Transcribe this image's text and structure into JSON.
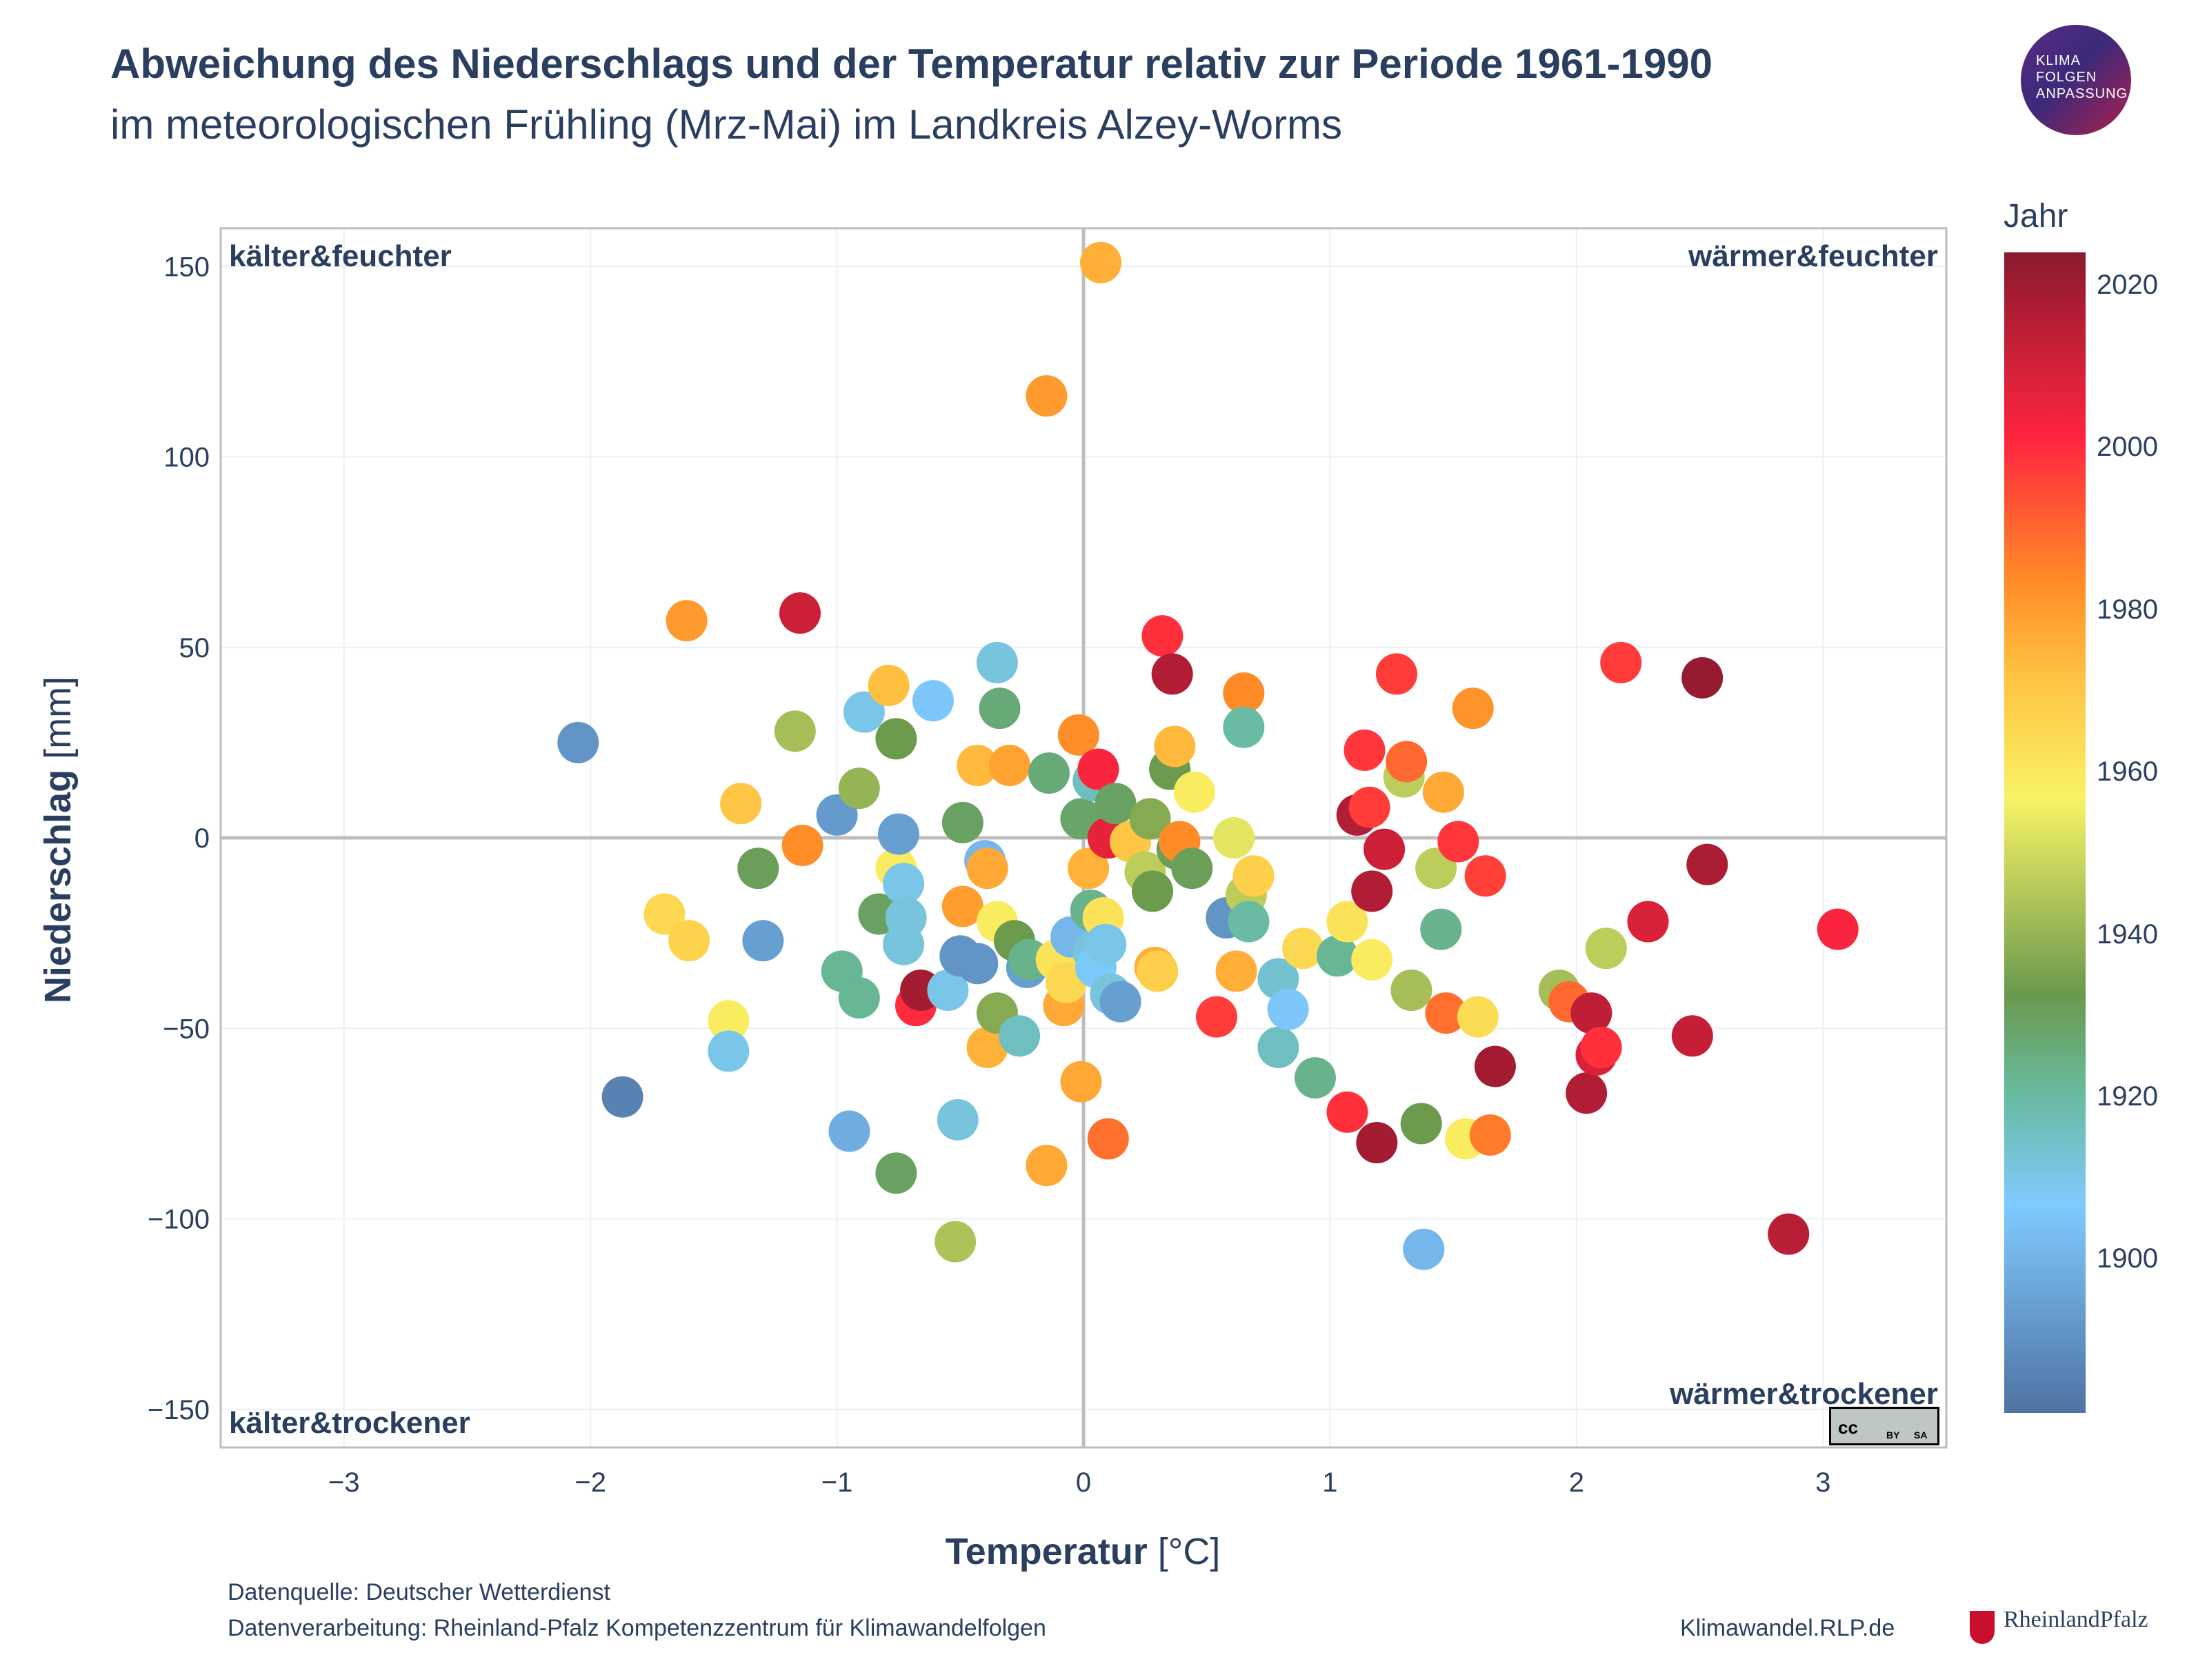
{
  "title": "Abweichung des Niederschlags und der Temperatur relativ zur Periode 1961-1990",
  "subtitle": "im meteorologischen Frühling (Mrz-Mai) im Landkreis Alzey-Worms",
  "logo_text": [
    "KLIMA",
    "FOLGEN",
    "ANPASSUNG"
  ],
  "colorbar": {
    "title": "Jahr",
    "ticks": [
      "2020",
      "2000",
      "1980",
      "1960",
      "1940",
      "1920",
      "1900"
    ],
    "tick_years": [
      2020,
      2000,
      1980,
      1960,
      1940,
      1920,
      1900
    ],
    "range": [
      1881,
      2024
    ],
    "colors": [
      "#4f73a2",
      "#7fcaff",
      "#67b99a",
      "#6a994e",
      "#f8f365",
      "#ffbf3f",
      "#ff8a27",
      "#ff243f",
      "#8a1a2e"
    ]
  },
  "footer": {
    "source": "Datenquelle: Deutscher Wetterdienst",
    "processing": "Datenverarbeitung: Rheinland-Pfalz Kompetenzzentrum für Klimawandelfolgen",
    "site": "Klimawandel.RLP.de",
    "state_logo": "RheinlandPfalz",
    "license": [
      "cc",
      "BY",
      "SA"
    ]
  },
  "chart_data": {
    "type": "scatter",
    "xlabel_bold": "Temperatur",
    "xlabel_unit": " [°C]",
    "ylabel_bold": "Niederschlag",
    "ylabel_unit": " [mm]",
    "xlim": [
      -3.5,
      3.5
    ],
    "ylim": [
      -160,
      160
    ],
    "x_ticks": [
      -3,
      -2,
      -1,
      0,
      1,
      2,
      3
    ],
    "x_tick_labels": [
      "−3",
      "−2",
      "−1",
      "0",
      "1",
      "2",
      "3"
    ],
    "y_ticks": [
      -150,
      -100,
      -50,
      0,
      50,
      100,
      150
    ],
    "y_tick_labels": [
      "−150",
      "−100",
      "−50",
      "0",
      "50",
      "100",
      "150"
    ],
    "grid": true,
    "quadrant_labels": {
      "top_left": "kälter&feuchter",
      "top_right": "wärmer&feuchter",
      "bottom_left": "kälter&trockener",
      "bottom_right": "wärmer&trockener"
    },
    "points": [
      {
        "x": -2.05,
        "y": 25,
        "year": 1888
      },
      {
        "x": -1.87,
        "y": -68,
        "year": 1884
      },
      {
        "x": -1.7,
        "y": -20,
        "year": 1962
      },
      {
        "x": -1.61,
        "y": 57,
        "year": 1983
      },
      {
        "x": -1.6,
        "y": -27,
        "year": 1964
      },
      {
        "x": -1.44,
        "y": -48,
        "year": 1955
      },
      {
        "x": -1.44,
        "y": -56,
        "year": 1903
      },
      {
        "x": -1.39,
        "y": 9,
        "year": 1968
      },
      {
        "x": -1.32,
        "y": -8,
        "year": 1932
      },
      {
        "x": -1.3,
        "y": -27,
        "year": 1890
      },
      {
        "x": -1.17,
        "y": 28,
        "year": 1942
      },
      {
        "x": -1.15,
        "y": 59,
        "year": 2014
      },
      {
        "x": -1.14,
        "y": -2,
        "year": 1987
      },
      {
        "x": -1.0,
        "y": 6,
        "year": 1889
      },
      {
        "x": -0.98,
        "y": -35,
        "year": 1918
      },
      {
        "x": -0.95,
        "y": -77,
        "year": 1893
      },
      {
        "x": -0.91,
        "y": -42,
        "year": 1918
      },
      {
        "x": -0.91,
        "y": 13,
        "year": 1940
      },
      {
        "x": -0.89,
        "y": 33,
        "year": 1903
      },
      {
        "x": -0.83,
        "y": -20,
        "year": 1930
      },
      {
        "x": -0.79,
        "y": 40,
        "year": 1970
      },
      {
        "x": -0.76,
        "y": 26,
        "year": 1935
      },
      {
        "x": -0.76,
        "y": -8,
        "year": 1955
      },
      {
        "x": -0.76,
        "y": -88,
        "year": 1930
      },
      {
        "x": -0.75,
        "y": 1,
        "year": 1890
      },
      {
        "x": -0.73,
        "y": -12,
        "year": 1903
      },
      {
        "x": -0.72,
        "y": -21,
        "year": 1905
      },
      {
        "x": -0.73,
        "y": -28,
        "year": 1905
      },
      {
        "x": -0.68,
        "y": -44,
        "year": 2005
      },
      {
        "x": -0.66,
        "y": -40,
        "year": 2020
      },
      {
        "x": -0.61,
        "y": 36,
        "year": 1898
      },
      {
        "x": -0.55,
        "y": -40,
        "year": 1903
      },
      {
        "x": -0.52,
        "y": -106,
        "year": 1943
      },
      {
        "x": -0.51,
        "y": -74,
        "year": 1905
      },
      {
        "x": -0.5,
        "y": -31,
        "year": 1888
      },
      {
        "x": -0.49,
        "y": 4,
        "year": 1930
      },
      {
        "x": -0.49,
        "y": -18,
        "year": 1982
      },
      {
        "x": -0.43,
        "y": -33,
        "year": 1888
      },
      {
        "x": -0.43,
        "y": 19,
        "year": 1972
      },
      {
        "x": -0.4,
        "y": -6,
        "year": 1895
      },
      {
        "x": -0.39,
        "y": -8,
        "year": 1978
      },
      {
        "x": -0.39,
        "y": -55,
        "year": 1975
      },
      {
        "x": -0.35,
        "y": 46,
        "year": 1905
      },
      {
        "x": -0.34,
        "y": 34,
        "year": 1925
      },
      {
        "x": -0.35,
        "y": -22,
        "year": 1955
      },
      {
        "x": -0.35,
        "y": -46,
        "year": 1938
      },
      {
        "x": -0.3,
        "y": 19,
        "year": 1980
      },
      {
        "x": -0.28,
        "y": -27,
        "year": 1935
      },
      {
        "x": -0.26,
        "y": -52,
        "year": 1910
      },
      {
        "x": -0.23,
        "y": -34,
        "year": 1890
      },
      {
        "x": -0.22,
        "y": -32,
        "year": 1920
      },
      {
        "x": -0.15,
        "y": 116,
        "year": 1983
      },
      {
        "x": -0.15,
        "y": -86,
        "year": 1978
      },
      {
        "x": -0.14,
        "y": 17,
        "year": 1925
      },
      {
        "x": -0.11,
        "y": -32,
        "year": 1958
      },
      {
        "x": -0.08,
        "y": -44,
        "year": 1978
      },
      {
        "x": -0.07,
        "y": -38,
        "year": 1962
      },
      {
        "x": -0.05,
        "y": -26,
        "year": 1895
      },
      {
        "x": -0.02,
        "y": 27,
        "year": 1987
      },
      {
        "x": -0.01,
        "y": -64,
        "year": 1978
      },
      {
        "x": -0.01,
        "y": 5,
        "year": 1928
      },
      {
        "x": 0.02,
        "y": -8,
        "year": 1975
      },
      {
        "x": 0.03,
        "y": -19,
        "year": 1920
      },
      {
        "x": 0.04,
        "y": 15,
        "year": 1910
      },
      {
        "x": 0.04,
        "y": -30,
        "year": 1905
      },
      {
        "x": 0.05,
        "y": -34,
        "year": 1900
      },
      {
        "x": 0.06,
        "y": 18,
        "year": 2007
      },
      {
        "x": 0.07,
        "y": 151,
        "year": 1976
      },
      {
        "x": 0.08,
        "y": -21,
        "year": 1958
      },
      {
        "x": 0.09,
        "y": -28,
        "year": 1903
      },
      {
        "x": 0.1,
        "y": -79,
        "year": 1993
      },
      {
        "x": 0.1,
        "y": 0,
        "year": 2010
      },
      {
        "x": 0.11,
        "y": -41,
        "year": 1905
      },
      {
        "x": 0.13,
        "y": 9,
        "year": 1930
      },
      {
        "x": 0.15,
        "y": -43,
        "year": 1890
      },
      {
        "x": 0.19,
        "y": -1,
        "year": 1968
      },
      {
        "x": 0.25,
        "y": -9,
        "year": 1945
      },
      {
        "x": 0.27,
        "y": 5,
        "year": 1938
      },
      {
        "x": 0.28,
        "y": -14,
        "year": 1935
      },
      {
        "x": 0.29,
        "y": -34,
        "year": 1976
      },
      {
        "x": 0.3,
        "y": -35,
        "year": 1965
      },
      {
        "x": 0.32,
        "y": 53,
        "year": 2004
      },
      {
        "x": 0.35,
        "y": 18,
        "year": 1935
      },
      {
        "x": 0.36,
        "y": 43,
        "year": 2018
      },
      {
        "x": 0.37,
        "y": 24,
        "year": 1972
      },
      {
        "x": 0.38,
        "y": -3,
        "year": 1932
      },
      {
        "x": 0.39,
        "y": -1,
        "year": 1988
      },
      {
        "x": 0.44,
        "y": -8,
        "year": 1932
      },
      {
        "x": 0.45,
        "y": 12,
        "year": 1955
      },
      {
        "x": 0.54,
        "y": -47,
        "year": 2002
      },
      {
        "x": 0.58,
        "y": -21,
        "year": 1888
      },
      {
        "x": 0.61,
        "y": 0,
        "year": 1950
      },
      {
        "x": 0.62,
        "y": -35,
        "year": 1976
      },
      {
        "x": 0.65,
        "y": 38,
        "year": 1988
      },
      {
        "x": 0.65,
        "y": 29,
        "year": 1915
      },
      {
        "x": 0.66,
        "y": -15,
        "year": 1945
      },
      {
        "x": 0.67,
        "y": -22,
        "year": 1915
      },
      {
        "x": 0.69,
        "y": -10,
        "year": 1965
      },
      {
        "x": 0.79,
        "y": -37,
        "year": 1907
      },
      {
        "x": 0.79,
        "y": -55,
        "year": 1910
      },
      {
        "x": 0.83,
        "y": -45,
        "year": 1898
      },
      {
        "x": 0.89,
        "y": -29,
        "year": 1962
      },
      {
        "x": 0.94,
        "y": -63,
        "year": 1920
      },
      {
        "x": 1.03,
        "y": -31,
        "year": 1918
      },
      {
        "x": 1.07,
        "y": -22,
        "year": 1958
      },
      {
        "x": 1.07,
        "y": -72,
        "year": 2004
      },
      {
        "x": 1.11,
        "y": 6,
        "year": 2018
      },
      {
        "x": 1.14,
        "y": 23,
        "year": 2003
      },
      {
        "x": 1.16,
        "y": 8,
        "year": 2002
      },
      {
        "x": 1.17,
        "y": -32,
        "year": 1955
      },
      {
        "x": 1.17,
        "y": -14,
        "year": 2018
      },
      {
        "x": 1.19,
        "y": -80,
        "year": 2020
      },
      {
        "x": 1.22,
        "y": -3,
        "year": 2014
      },
      {
        "x": 1.27,
        "y": 43,
        "year": 2002
      },
      {
        "x": 1.3,
        "y": 16,
        "year": 1945
      },
      {
        "x": 1.31,
        "y": 20,
        "year": 1994
      },
      {
        "x": 1.33,
        "y": -40,
        "year": 1942
      },
      {
        "x": 1.37,
        "y": -75,
        "year": 1935
      },
      {
        "x": 1.38,
        "y": -108,
        "year": 1895
      },
      {
        "x": 1.43,
        "y": -8,
        "year": 1945
      },
      {
        "x": 1.45,
        "y": -24,
        "year": 1920
      },
      {
        "x": 1.46,
        "y": 12,
        "year": 1978
      },
      {
        "x": 1.47,
        "y": -46,
        "year": 1993
      },
      {
        "x": 1.52,
        "y": -1,
        "year": 2003
      },
      {
        "x": 1.55,
        "y": -79,
        "year": 1955
      },
      {
        "x": 1.58,
        "y": 34,
        "year": 1985
      },
      {
        "x": 1.6,
        "y": -47,
        "year": 1960
      },
      {
        "x": 1.63,
        "y": -10,
        "year": 2001
      },
      {
        "x": 1.65,
        "y": -78,
        "year": 1991
      },
      {
        "x": 1.67,
        "y": -60,
        "year": 2020
      },
      {
        "x": 1.93,
        "y": -40,
        "year": 1942
      },
      {
        "x": 1.97,
        "y": -43,
        "year": 1994
      },
      {
        "x": 2.04,
        "y": -67,
        "year": 2018
      },
      {
        "x": 2.06,
        "y": -46,
        "year": 2016
      },
      {
        "x": 2.08,
        "y": -57,
        "year": 2012
      },
      {
        "x": 2.1,
        "y": -55,
        "year": 2004
      },
      {
        "x": 2.12,
        "y": -29,
        "year": 1945
      },
      {
        "x": 2.18,
        "y": 46,
        "year": 2002
      },
      {
        "x": 2.29,
        "y": -22,
        "year": 2012
      },
      {
        "x": 2.47,
        "y": -52,
        "year": 2015
      },
      {
        "x": 2.51,
        "y": 42,
        "year": 2022
      },
      {
        "x": 2.53,
        "y": -7,
        "year": 2019
      },
      {
        "x": 2.86,
        "y": -104,
        "year": 2017
      },
      {
        "x": 3.06,
        "y": -24,
        "year": 2007
      }
    ]
  }
}
